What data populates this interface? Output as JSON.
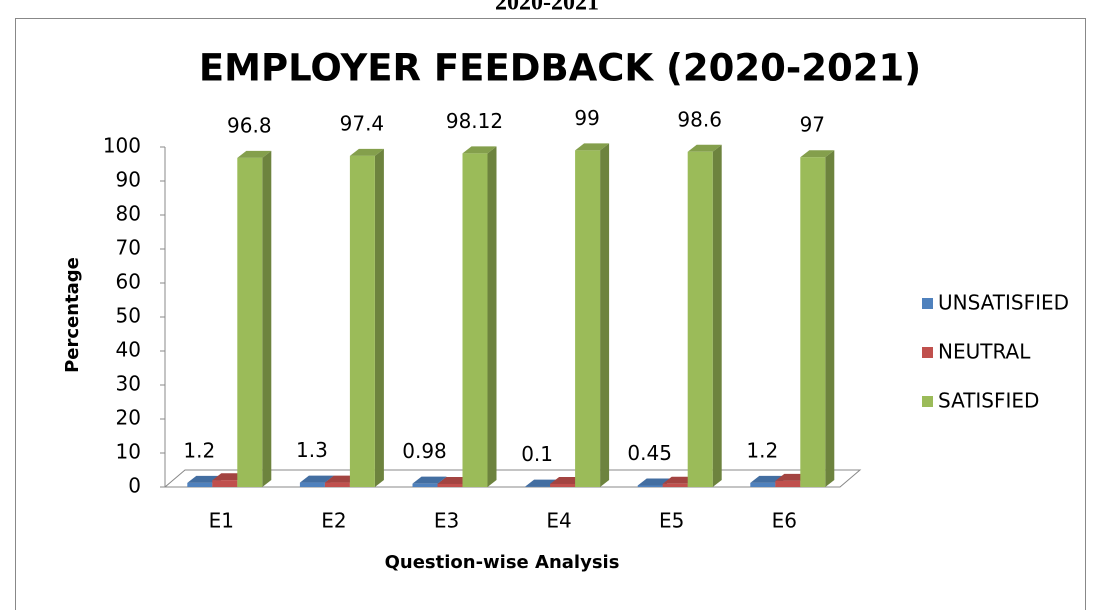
{
  "page_heading": "2020-2021",
  "chart_data": {
    "type": "bar3d",
    "title": "EMPLOYER FEEDBACK (2020-2021)",
    "x_label": "Question-wise Analysis",
    "y_label": "Percentage",
    "categories": [
      "E1",
      "E2",
      "E3",
      "E4",
      "E5",
      "E6"
    ],
    "series": [
      {
        "name": "UNSATISFIED",
        "color": "#4f81bd",
        "values": [
          1.2,
          1.3,
          0.98,
          0.1,
          0.45,
          1.2
        ]
      },
      {
        "name": "NEUTRAL",
        "color": "#c0504d",
        "values": [
          2.0,
          1.3,
          0.9,
          0.9,
          0.95,
          1.8
        ]
      },
      {
        "name": "SATISFIED",
        "color": "#9bbb59",
        "values": [
          96.8,
          97.4,
          98.12,
          99,
          98.6,
          97
        ]
      }
    ],
    "labeled_series": [
      0,
      2
    ],
    "ylim": [
      0,
      100
    ],
    "yticks": [
      0,
      10,
      20,
      30,
      40,
      50,
      60,
      70,
      80,
      90,
      100
    ],
    "legend": "right"
  }
}
